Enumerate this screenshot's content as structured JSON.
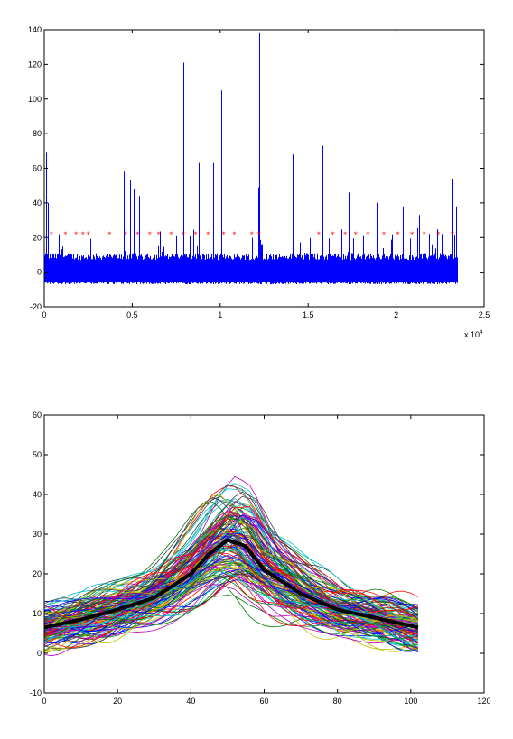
{
  "chart_data": [
    {
      "type": "line",
      "title": "",
      "xlabel": "",
      "ylabel": "",
      "xlim": [
        0,
        25000
      ],
      "ylim": [
        -20,
        140
      ],
      "x_ticks": [
        "0",
        "0.5",
        "1",
        "1.5",
        "2",
        "2.5"
      ],
      "x_tick_values": [
        0,
        5000,
        10000,
        15000,
        20000,
        25000
      ],
      "x_multiplier_label": "x 10",
      "x_multiplier_exponent": "4",
      "y_ticks": [
        "-20",
        "0",
        "20",
        "40",
        "60",
        "80",
        "100",
        "120",
        "140"
      ],
      "y_tick_values": [
        -20,
        0,
        20,
        40,
        60,
        80,
        100,
        120,
        140
      ],
      "grid": false,
      "series": [
        {
          "style": "line",
          "color": "#0000ff",
          "baseline": [
            -7,
            7
          ],
          "n_samples": 23500,
          "peaks": [
            {
              "x": 100,
              "y": 69
            },
            {
              "x": 200,
              "y": 40
            },
            {
              "x": 4600,
              "y": 98
            },
            {
              "x": 4500,
              "y": 58
            },
            {
              "x": 4900,
              "y": 53
            },
            {
              "x": 5100,
              "y": 48
            },
            {
              "x": 5400,
              "y": 44
            },
            {
              "x": 7900,
              "y": 121
            },
            {
              "x": 8800,
              "y": 63
            },
            {
              "x": 9600,
              "y": 63
            },
            {
              "x": 9900,
              "y": 106
            },
            {
              "x": 10050,
              "y": 105
            },
            {
              "x": 12200,
              "y": 138
            },
            {
              "x": 12150,
              "y": 49
            },
            {
              "x": 14100,
              "y": 68
            },
            {
              "x": 15800,
              "y": 73
            },
            {
              "x": 16800,
              "y": 66
            },
            {
              "x": 17300,
              "y": 46
            },
            {
              "x": 18900,
              "y": 40
            },
            {
              "x": 20400,
              "y": 38
            },
            {
              "x": 21300,
              "y": 33
            },
            {
              "x": 23200,
              "y": 54
            },
            {
              "x": 23400,
              "y": 38
            }
          ]
        },
        {
          "style": "markers",
          "marker": "*",
          "color": "#ff0000",
          "y": 22,
          "x": [
            400,
            1200,
            1800,
            2200,
            2500,
            3700,
            4600,
            5300,
            6000,
            6500,
            7200,
            7900,
            8600,
            9300,
            10200,
            10800,
            11800,
            12200,
            15600,
            16400,
            17100,
            17700,
            18400,
            19300,
            20100,
            20900,
            21600,
            22400,
            23200
          ]
        }
      ]
    },
    {
      "type": "line",
      "title": "",
      "xlabel": "",
      "ylabel": "",
      "xlim": [
        0,
        120
      ],
      "ylim": [
        -10,
        60
      ],
      "x_ticks": [
        "0",
        "20",
        "40",
        "60",
        "80",
        "100",
        "120"
      ],
      "x_tick_values": [
        0,
        20,
        40,
        60,
        80,
        100,
        120
      ],
      "y_ticks": [
        "-10",
        "0",
        "10",
        "20",
        "30",
        "40",
        "50",
        "60"
      ],
      "y_tick_values": [
        -10,
        0,
        10,
        20,
        30,
        40,
        50,
        60
      ],
      "grid": false,
      "curve_count": 130,
      "x_range": [
        0,
        102
      ],
      "curve_colors": [
        "#0000ff",
        "#008000",
        "#ff0000",
        "#00bfbf",
        "#bf00bf",
        "#bfbf00",
        "#404040"
      ],
      "mean_series": {
        "color": "#000000",
        "x": [
          0,
          10,
          20,
          30,
          40,
          45,
          50,
          55,
          60,
          70,
          80,
          90,
          102
        ],
        "y": [
          6.5,
          8.5,
          11,
          14,
          20,
          25,
          28.5,
          27,
          21,
          15,
          11,
          9,
          6.5
        ]
      }
    }
  ]
}
